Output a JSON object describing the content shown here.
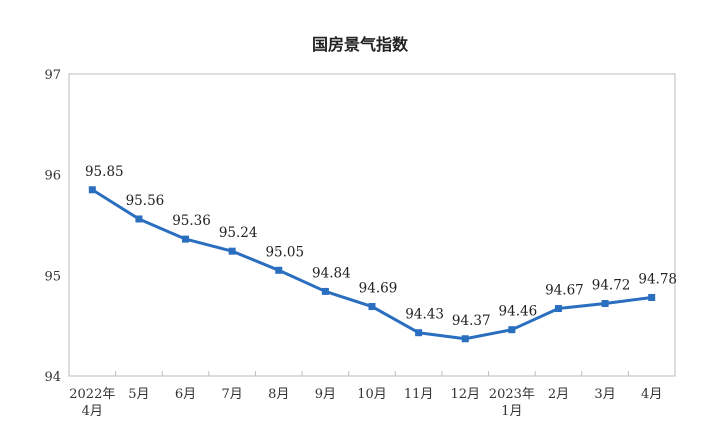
{
  "chart_data": {
    "type": "line",
    "title": "国房景气指数",
    "xlabel": "",
    "ylabel": "",
    "ylim": [
      94,
      97
    ],
    "yticks": [
      "94",
      "95",
      "96",
      "97"
    ],
    "grid": false,
    "categories": [
      [
        "2022年",
        "4月"
      ],
      [
        "5月"
      ],
      [
        "6月"
      ],
      [
        "7月"
      ],
      [
        "8月"
      ],
      [
        "9月"
      ],
      [
        "10月"
      ],
      [
        "11月"
      ],
      [
        "12月"
      ],
      [
        "2023年",
        "1月"
      ],
      [
        "2月"
      ],
      [
        "3月"
      ],
      [
        "4月"
      ]
    ],
    "series": [
      {
        "name": "国房景气指数",
        "values": [
          95.85,
          95.56,
          95.36,
          95.24,
          95.05,
          94.84,
          94.69,
          94.43,
          94.37,
          94.46,
          94.67,
          94.72,
          94.78
        ]
      }
    ],
    "labels": [
      "95.85",
      "95.56",
      "95.36",
      "95.24",
      "95.05",
      "94.84",
      "94.69",
      "94.43",
      "94.37",
      "94.46",
      "94.67",
      "94.72",
      "94.78"
    ],
    "colors": {
      "line": "#2a6ebf",
      "axis": "#bdbdbd"
    }
  }
}
